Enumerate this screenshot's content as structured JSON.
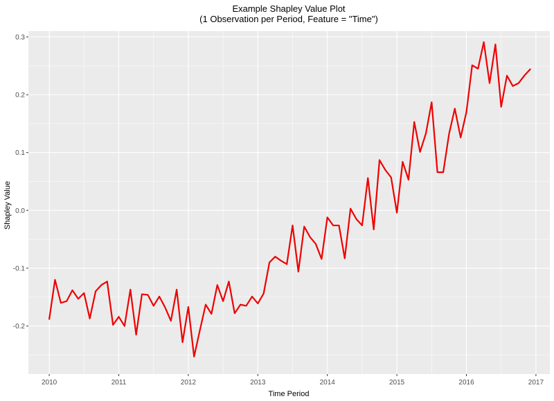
{
  "chart_data": {
    "type": "line",
    "title": "Example Shapley Value Plot",
    "subtitle": "(1 Observation per Period, Feature = \"Time\")",
    "xlabel": "Time Period",
    "ylabel": "Shapley Value",
    "xlim": [
      2009.7,
      2017.2
    ],
    "ylim": [
      -0.283,
      0.31
    ],
    "x_ticks": [
      2010,
      2011,
      2012,
      2013,
      2014,
      2015,
      2016,
      2017
    ],
    "x_tick_labels": [
      "2010",
      "2011",
      "2012",
      "2013",
      "2014",
      "2015",
      "2016",
      "2017"
    ],
    "y_ticks": [
      -0.2,
      -0.1,
      0.0,
      0.1,
      0.2,
      0.3
    ],
    "y_tick_labels": [
      "-0.2",
      "-0.1",
      "0.0",
      "0.1",
      "0.2",
      "0.3"
    ],
    "grid": true,
    "legend": "none",
    "colors": {
      "line": "#ee0000",
      "panel": "#ebebeb",
      "grid_major": "#ffffff"
    },
    "series": [
      {
        "x": [
          2010.0,
          2010.083,
          2010.167,
          2010.25,
          2010.333,
          2010.417,
          2010.5,
          2010.583,
          2010.667,
          2010.75,
          2010.833,
          2010.917,
          2011.0,
          2011.083,
          2011.167,
          2011.25,
          2011.333,
          2011.417,
          2011.5,
          2011.583,
          2011.667,
          2011.75,
          2011.833,
          2011.917,
          2012.0,
          2012.083,
          2012.167,
          2012.25,
          2012.333,
          2012.417,
          2012.5,
          2012.583,
          2012.667,
          2012.75,
          2012.833,
          2012.917,
          2013.0,
          2013.083,
          2013.167,
          2013.25,
          2013.333,
          2013.417,
          2013.5,
          2013.583,
          2013.667,
          2013.75,
          2013.833,
          2013.917,
          2014.0,
          2014.083,
          2014.167,
          2014.25,
          2014.333,
          2014.417,
          2014.5,
          2014.583,
          2014.667,
          2014.75,
          2014.833,
          2014.917,
          2015.0,
          2015.083,
          2015.167,
          2015.25,
          2015.333,
          2015.417,
          2015.5,
          2015.583,
          2015.667,
          2015.75,
          2015.833,
          2015.917,
          2016.0,
          2016.083,
          2016.167,
          2016.25,
          2016.333,
          2016.417,
          2016.5,
          2016.583,
          2016.667,
          2016.75,
          2016.833,
          2016.917
        ],
        "y": [
          -0.188,
          -0.12,
          -0.16,
          -0.157,
          -0.138,
          -0.153,
          -0.143,
          -0.187,
          -0.14,
          -0.129,
          -0.123,
          -0.198,
          -0.184,
          -0.2,
          -0.137,
          -0.215,
          -0.145,
          -0.146,
          -0.165,
          -0.149,
          -0.168,
          -0.191,
          -0.137,
          -0.228,
          -0.167,
          -0.253,
          -0.207,
          -0.163,
          -0.179,
          -0.129,
          -0.157,
          -0.123,
          -0.178,
          -0.163,
          -0.165,
          -0.149,
          -0.161,
          -0.144,
          -0.09,
          -0.08,
          -0.087,
          -0.093,
          -0.026,
          -0.106,
          -0.028,
          -0.046,
          -0.058,
          -0.084,
          -0.012,
          -0.026,
          -0.026,
          -0.083,
          0.003,
          -0.015,
          -0.026,
          0.056,
          -0.033,
          0.087,
          0.07,
          0.057,
          -0.004,
          0.084,
          0.053,
          0.153,
          0.101,
          0.133,
          0.187,
          0.066,
          0.066,
          0.132,
          0.176,
          0.126,
          0.17,
          0.251,
          0.245,
          0.291,
          0.22,
          0.287,
          0.179,
          0.233,
          0.215,
          0.22,
          0.233,
          0.244
        ]
      }
    ]
  }
}
